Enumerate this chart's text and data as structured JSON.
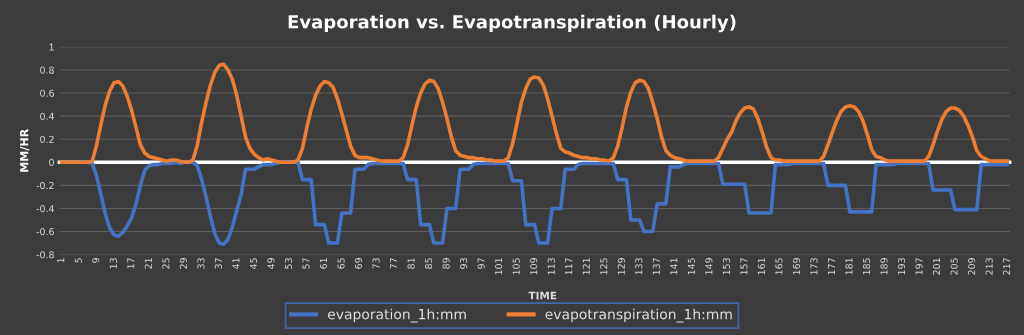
{
  "chart_data": {
    "type": "line",
    "title": "Evaporation vs. Evapotranspiration (Hourly)",
    "xlabel": "TIME",
    "ylabel": "MM/HR",
    "categories": [
      "1",
      null,
      null,
      null,
      "5",
      null,
      null,
      null,
      "9",
      null,
      null,
      null,
      "13",
      null,
      null,
      null,
      "17",
      null,
      null,
      null,
      "21",
      null,
      null,
      null,
      "25",
      null,
      null,
      null,
      "29",
      null,
      null,
      null,
      "33",
      null,
      null,
      null,
      "37",
      null,
      null,
      null,
      "41",
      null,
      null,
      null,
      "45",
      null,
      null,
      null,
      "49",
      null,
      null,
      null,
      "53",
      null,
      null,
      null,
      "57",
      null,
      null,
      null,
      "61",
      null,
      null,
      null,
      "65",
      null,
      null,
      null,
      "69",
      null,
      null,
      null,
      "73",
      null,
      null,
      null,
      "77",
      null,
      null,
      null,
      "81",
      null,
      null,
      null,
      "85",
      null,
      null,
      null,
      "89",
      null,
      null,
      null,
      "93",
      null,
      null,
      null,
      "97",
      null,
      null,
      null,
      "101",
      null,
      null,
      null,
      "105",
      null,
      null,
      null,
      "109",
      null,
      null,
      null,
      "113",
      null,
      null,
      null,
      "117",
      null,
      null,
      null,
      "121",
      null,
      null,
      null,
      "125",
      null,
      null,
      null,
      "129",
      null,
      null,
      null,
      "133",
      null,
      null,
      null,
      "137",
      null,
      null,
      null,
      "141",
      null,
      null,
      null,
      "145",
      null,
      null,
      null,
      "149",
      null,
      null,
      null,
      "153",
      null,
      null,
      null,
      "157",
      null,
      null,
      null,
      "161",
      null,
      null,
      null,
      "165",
      null,
      null,
      null,
      "169",
      null,
      null,
      null,
      "173",
      null,
      null,
      null,
      "177",
      null,
      null,
      null,
      "181",
      null,
      null,
      null,
      "185",
      null,
      null,
      null,
      "189",
      null,
      null,
      null,
      "193",
      null,
      null,
      null,
      "197",
      null,
      null,
      null,
      "201",
      null,
      null,
      null,
      "205",
      null,
      null,
      null,
      "209",
      null,
      null,
      null,
      "213",
      null,
      null,
      null,
      "217"
    ],
    "series": [
      {
        "name": "evaporation_1h:mm",
        "color": "#4472c4",
        "values": [
          null,
          null,
          null,
          null,
          null,
          0,
          0,
          -0.01,
          -0.12,
          -0.28,
          -0.45,
          -0.57,
          -0.63,
          -0.64,
          -0.61,
          -0.55,
          -0.48,
          -0.36,
          -0.2,
          -0.07,
          -0.03,
          -0.02,
          -0.02,
          -0.01,
          -0.01,
          -0.01,
          0,
          -0.01,
          0,
          0,
          0,
          -0.03,
          -0.15,
          -0.3,
          -0.47,
          -0.62,
          -0.7,
          -0.71,
          -0.67,
          -0.56,
          -0.42,
          -0.28,
          -0.06,
          -0.06,
          -0.06,
          -0.04,
          -0.02,
          -0.02,
          -0.02,
          -0.01,
          0,
          0,
          0,
          0,
          0,
          -0.15,
          -0.15,
          -0.15,
          -0.54,
          -0.54,
          -0.54,
          -0.7,
          -0.7,
          -0.7,
          -0.44,
          -0.44,
          -0.44,
          -0.06,
          -0.06,
          -0.06,
          -0.02,
          -0.01,
          -0.01,
          -0.01,
          -0.01,
          -0.01,
          -0.01,
          -0.01,
          -0.01,
          -0.15,
          -0.15,
          -0.15,
          -0.54,
          -0.54,
          -0.54,
          -0.7,
          -0.7,
          -0.7,
          -0.4,
          -0.4,
          -0.4,
          -0.06,
          -0.06,
          -0.06,
          -0.02,
          -0.01,
          -0.01,
          -0.01,
          -0.01,
          -0.01,
          -0.01,
          -0.01,
          -0.01,
          -0.16,
          -0.16,
          -0.16,
          -0.54,
          -0.54,
          -0.54,
          -0.7,
          -0.7,
          -0.7,
          -0.4,
          -0.4,
          -0.4,
          -0.06,
          -0.06,
          -0.06,
          -0.02,
          -0.01,
          -0.01,
          -0.01,
          -0.01,
          -0.01,
          -0.01,
          -0.01,
          -0.01,
          -0.15,
          -0.15,
          -0.15,
          -0.5,
          -0.5,
          -0.5,
          -0.6,
          -0.6,
          -0.6,
          -0.36,
          -0.36,
          -0.36,
          -0.04,
          -0.04,
          -0.04,
          -0.02,
          -0.01,
          -0.01,
          -0.01,
          -0.01,
          -0.01,
          -0.01,
          -0.01,
          -0.01,
          -0.19,
          -0.19,
          -0.19,
          -0.19,
          -0.19,
          -0.19,
          -0.44,
          -0.44,
          -0.44,
          -0.44,
          -0.44,
          -0.44,
          -0.02,
          -0.02,
          -0.02,
          -0.02,
          -0.01,
          -0.01,
          -0.01,
          -0.01,
          -0.01,
          -0.01,
          -0.01,
          -0.01,
          -0.2,
          -0.2,
          -0.2,
          -0.2,
          -0.2,
          -0.43,
          -0.43,
          -0.43,
          -0.43,
          -0.43,
          -0.43,
          -0.02,
          -0.02,
          -0.02,
          -0.02,
          -0.02,
          -0.01,
          -0.01,
          -0.01,
          -0.01,
          -0.01,
          -0.01,
          -0.01,
          -0.01,
          -0.24,
          -0.24,
          -0.24,
          -0.24,
          -0.24,
          -0.41,
          -0.41,
          -0.41,
          -0.41,
          -0.41,
          -0.41,
          -0.02,
          -0.02,
          -0.02,
          -0.02,
          -0.02,
          -0.02,
          -0.02
        ]
      },
      {
        "name": "evapotranspiration_1h:mm",
        "color": "#ed7d31",
        "values": [
          0,
          0,
          0,
          0,
          0,
          0,
          0,
          0.01,
          0.15,
          0.33,
          0.5,
          0.62,
          0.69,
          0.7,
          0.66,
          0.57,
          0.45,
          0.3,
          0.15,
          0.08,
          0.05,
          0.04,
          0.03,
          0.02,
          0.01,
          0.02,
          0.02,
          0.01,
          0,
          0,
          0.02,
          0.15,
          0.35,
          0.52,
          0.67,
          0.78,
          0.84,
          0.85,
          0.8,
          0.72,
          0.58,
          0.4,
          0.22,
          0.12,
          0.07,
          0.04,
          0.02,
          0.03,
          0.02,
          0.01,
          0,
          0,
          0,
          0,
          0.02,
          0.12,
          0.3,
          0.46,
          0.58,
          0.66,
          0.7,
          0.69,
          0.65,
          0.55,
          0.42,
          0.28,
          0.14,
          0.06,
          0.04,
          0.04,
          0.04,
          0.03,
          0.02,
          0.01,
          0.01,
          0.01,
          0.01,
          0.01,
          0.04,
          0.15,
          0.32,
          0.48,
          0.6,
          0.68,
          0.71,
          0.7,
          0.64,
          0.52,
          0.38,
          0.22,
          0.1,
          0.06,
          0.05,
          0.04,
          0.04,
          0.03,
          0.03,
          0.02,
          0.02,
          0.01,
          0.01,
          0.01,
          0.04,
          0.16,
          0.34,
          0.52,
          0.64,
          0.72,
          0.74,
          0.73,
          0.67,
          0.55,
          0.4,
          0.25,
          0.12,
          0.09,
          0.08,
          0.06,
          0.05,
          0.04,
          0.04,
          0.03,
          0.03,
          0.02,
          0.02,
          0.01,
          0.04,
          0.14,
          0.3,
          0.48,
          0.61,
          0.69,
          0.71,
          0.7,
          0.64,
          0.52,
          0.38,
          0.22,
          0.1,
          0.06,
          0.04,
          0.03,
          0.02,
          0.01,
          0.01,
          0.01,
          0.01,
          0.01,
          0.01,
          0.01,
          0.04,
          0.12,
          0.2,
          0.26,
          0.36,
          0.43,
          0.47,
          0.48,
          0.46,
          0.38,
          0.26,
          0.13,
          0.04,
          0.02,
          0.02,
          0.01,
          0.01,
          0.01,
          0.01,
          0.01,
          0.01,
          0.01,
          0.01,
          0.01,
          0.05,
          0.15,
          0.26,
          0.36,
          0.44,
          0.48,
          0.49,
          0.48,
          0.44,
          0.36,
          0.24,
          0.11,
          0.05,
          0.04,
          0.02,
          0.01,
          0.01,
          0.01,
          0.01,
          0.01,
          0.01,
          0.01,
          0.01,
          0.01,
          0.05,
          0.15,
          0.27,
          0.37,
          0.44,
          0.47,
          0.47,
          0.45,
          0.4,
          0.32,
          0.22,
          0.1,
          0.05,
          0.03,
          0.01,
          0.01,
          0.01,
          0.01,
          0.01
        ]
      }
    ],
    "ylim": [
      -0.8,
      1
    ],
    "yticks": [
      -0.8,
      -0.6,
      -0.4,
      -0.2,
      0,
      0.2,
      0.4,
      0.6,
      0.8,
      1
    ],
    "grid": "y",
    "legend": "bottom",
    "marker": "none",
    "line_style": "solid"
  }
}
